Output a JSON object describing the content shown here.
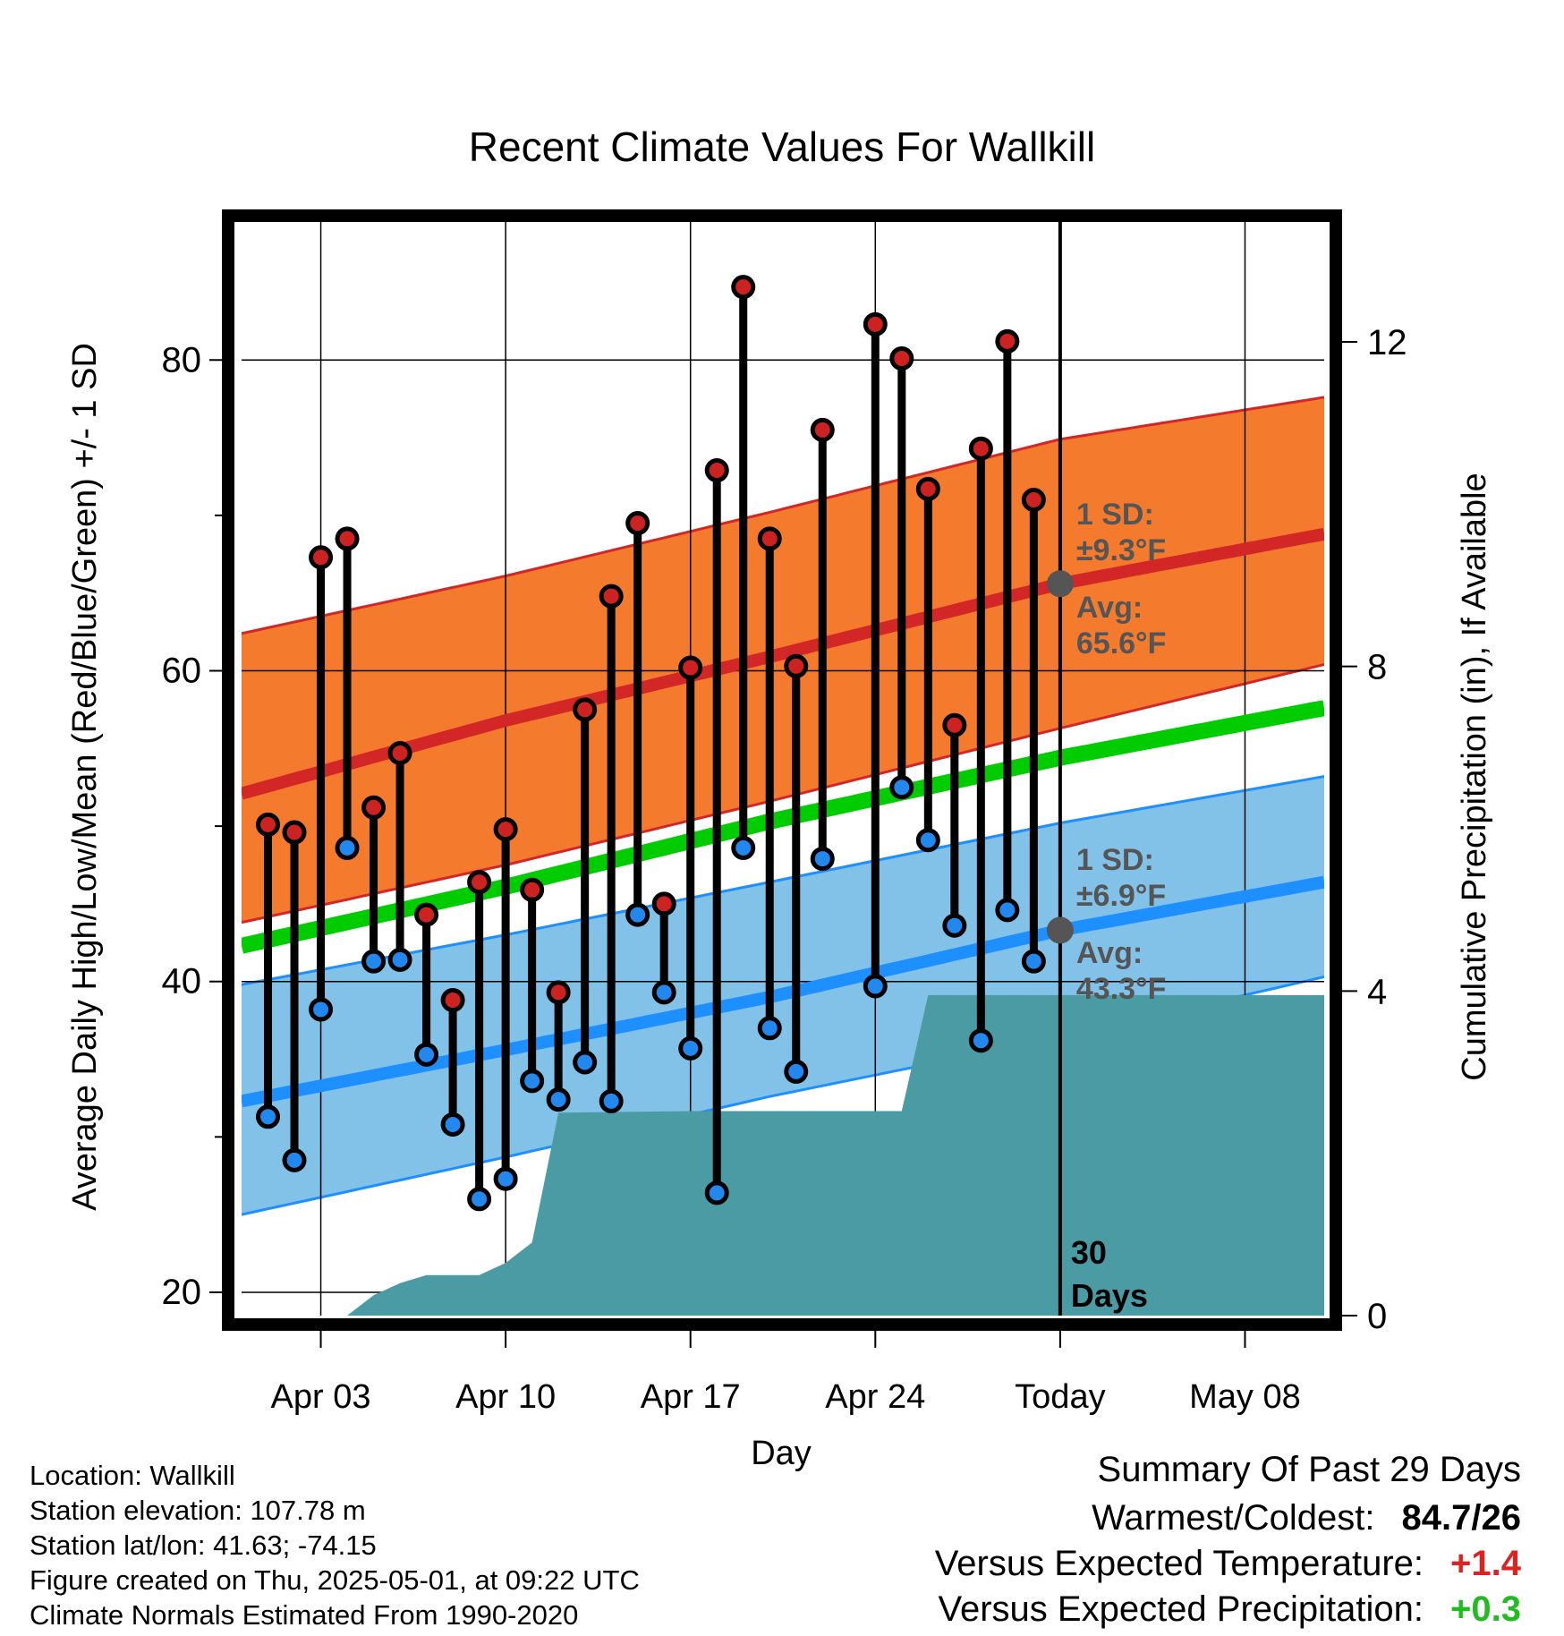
{
  "chart_data": {
    "type": "line",
    "title": "Recent Climate Values For Wallkill",
    "xlabel": "Day",
    "ylabel_left": "Average Daily High/Low/Mean (Red/Blue/Green) +/- 1 SD",
    "ylabel_right": "Cumulative Precipitation (in), If Available",
    "ylim": [
      18.5,
      89
    ],
    "ylim_right": [
      0,
      13.5
    ],
    "x_range_days": [
      0,
      41
    ],
    "x_ticks": [
      {
        "day": 3,
        "label": "Apr 03"
      },
      {
        "day": 10,
        "label": "Apr 10"
      },
      {
        "day": 17,
        "label": "Apr 17"
      },
      {
        "day": 24,
        "label": "Apr 24"
      },
      {
        "day": 31,
        "label": "Today"
      },
      {
        "day": 38,
        "label": "May 08"
      }
    ],
    "y_ticks_left": [
      20,
      40,
      60,
      80
    ],
    "y_ticks_right": [
      0,
      4,
      8,
      12
    ],
    "grid": true,
    "today_day": 31,
    "days_label": "30\nDays",
    "normals": {
      "high_mean": [
        [
          0,
          52.1
        ],
        [
          10,
          56.8
        ],
        [
          20,
          60.9
        ],
        [
          31,
          65.6
        ],
        [
          41,
          68.8
        ]
      ],
      "high_upper": [
        [
          0,
          62.4
        ],
        [
          10,
          66.1
        ],
        [
          20,
          70.2
        ],
        [
          31,
          74.9
        ],
        [
          41,
          77.6
        ]
      ],
      "high_lower": [
        [
          0,
          43.8
        ],
        [
          10,
          47.5
        ],
        [
          20,
          51.6
        ],
        [
          31,
          56.3
        ],
        [
          41,
          60.4
        ]
      ],
      "mean": [
        [
          0,
          42.3
        ],
        [
          10,
          46.1
        ],
        [
          20,
          50.3
        ],
        [
          31,
          54.4
        ],
        [
          41,
          57.6
        ]
      ],
      "low_mean": [
        [
          0,
          32.3
        ],
        [
          10,
          35.6
        ],
        [
          20,
          39.0
        ],
        [
          31,
          43.3
        ],
        [
          41,
          46.4
        ]
      ],
      "low_upper": [
        [
          0,
          39.8
        ],
        [
          10,
          43.0
        ],
        [
          20,
          46.4
        ],
        [
          31,
          50.2
        ],
        [
          41,
          53.2
        ]
      ],
      "low_lower": [
        [
          0,
          25.0
        ],
        [
          10,
          28.7
        ],
        [
          20,
          32.6
        ],
        [
          31,
          36.4
        ],
        [
          41,
          40.3
        ]
      ]
    },
    "high_label": {
      "sd": "1 SD:",
      "sd_value": "±9.3°F",
      "avg": "Avg:",
      "avg_value": "65.6°F"
    },
    "low_label": {
      "sd": "1 SD:",
      "sd_value": "±6.9°F",
      "avg": "Avg:",
      "avg_value": "43.3°F"
    },
    "daily": [
      {
        "day": 1,
        "high": 50.1,
        "low": 31.3
      },
      {
        "day": 2,
        "high": 49.6,
        "low": 28.5
      },
      {
        "day": 3,
        "high": 67.3,
        "low": 38.2
      },
      {
        "day": 4,
        "high": 68.5,
        "low": 48.6
      },
      {
        "day": 5,
        "high": 51.2,
        "low": 41.3
      },
      {
        "day": 6,
        "high": 54.7,
        "low": 41.4
      },
      {
        "day": 7,
        "high": 44.3,
        "low": 35.3
      },
      {
        "day": 8,
        "high": 38.8,
        "low": 30.8
      },
      {
        "day": 9,
        "high": 46.4,
        "low": 26.0
      },
      {
        "day": 10,
        "high": 49.8,
        "low": 27.3
      },
      {
        "day": 11,
        "high": 45.9,
        "low": 33.6
      },
      {
        "day": 12,
        "high": 39.3,
        "low": 32.4
      },
      {
        "day": 13,
        "high": 57.5,
        "low": 34.8
      },
      {
        "day": 14,
        "high": 64.8,
        "low": 32.3
      },
      {
        "day": 15,
        "high": 69.5,
        "low": 44.3
      },
      {
        "day": 16,
        "high": 45.0,
        "low": 39.3
      },
      {
        "day": 17,
        "high": 60.2,
        "low": 35.7
      },
      {
        "day": 18,
        "high": 72.9,
        "low": 26.4
      },
      {
        "day": 19,
        "high": 84.7,
        "low": 48.6
      },
      {
        "day": 20,
        "high": 68.5,
        "low": 37.0
      },
      {
        "day": 21,
        "high": 60.3,
        "low": 34.2
      },
      {
        "day": 22,
        "high": 75.5,
        "low": 47.9
      },
      {
        "day": 24,
        "high": 82.3,
        "low": 39.7
      },
      {
        "day": 25,
        "high": 80.1,
        "low": 52.5
      },
      {
        "day": 26,
        "high": 71.7,
        "low": 49.1
      },
      {
        "day": 27,
        "high": 56.5,
        "low": 43.6
      },
      {
        "day": 28,
        "high": 74.3,
        "low": 36.2
      },
      {
        "day": 29,
        "high": 81.2,
        "low": 44.6
      },
      {
        "day": 30,
        "high": 71.0,
        "low": 41.3
      }
    ],
    "precip_cumulative": [
      [
        0,
        0.0
      ],
      [
        4,
        0.0
      ],
      [
        5,
        0.25
      ],
      [
        6,
        0.4
      ],
      [
        7,
        0.5
      ],
      [
        9,
        0.5
      ],
      [
        10,
        0.65
      ],
      [
        11,
        0.9
      ],
      [
        12,
        2.5
      ],
      [
        17,
        2.52
      ],
      [
        25,
        2.52
      ],
      [
        26,
        3.95
      ],
      [
        41,
        3.95
      ]
    ],
    "colors": {
      "high_band": "#f47b2e",
      "high_line": "#d32727",
      "high_band_edge": "#d32727",
      "low_band": "#83c2e8",
      "low_line": "#1e8fff",
      "low_band_edge": "#1e8fff",
      "mean_line": "#00cc00",
      "precip": "#4a9ba4",
      "high_dot": "#cc2222",
      "low_dot": "#2288ee",
      "avg_dot": "#555555",
      "annotation": "#555555"
    }
  },
  "footer": {
    "location": "Location: Wallkill",
    "elevation": "Station elevation: 107.78 m",
    "latlon": "Station lat/lon: 41.63; -74.15",
    "created": "Figure created on Thu, 2025-05-01, at 09:22 UTC",
    "normals": "Climate Normals Estimated From 1990-2020"
  },
  "summary": {
    "title": "Summary Of Past 29 Days",
    "warmest_coldest_label": "Warmest/Coldest:",
    "warmest_coldest_value": "84.7/26",
    "temp_label": "Versus Expected Temperature:",
    "temp_value": "+1.4",
    "temp_color": "#dd2222",
    "precip_label": "Versus Expected Precipitation:",
    "precip_value": "+0.3",
    "precip_color": "#22bb22"
  }
}
